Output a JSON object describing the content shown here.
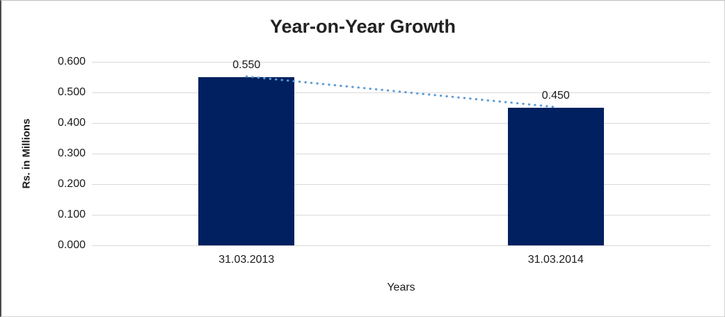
{
  "chart_data": {
    "type": "bar",
    "title": "Year-on-Year Growth",
    "categories": [
      "31.03.2013",
      "31.03.2014"
    ],
    "values": [
      0.55,
      0.45
    ],
    "data_labels": [
      "0.550",
      "0.450"
    ],
    "xlabel": "Years",
    "ylabel": "Rs. in Millions",
    "ylim": [
      0.0,
      0.6
    ],
    "yticks": [
      "0.000",
      "0.100",
      "0.200",
      "0.300",
      "0.400",
      "0.500",
      "0.600"
    ],
    "grid": "horizontal",
    "legend": "none",
    "bar_color": "#002060",
    "gridline_color": "#d9d9d9",
    "trendline": {
      "type": "linear",
      "style": "dotted",
      "color": "#5b9bd5"
    },
    "text_color": "#1a1a1a"
  }
}
